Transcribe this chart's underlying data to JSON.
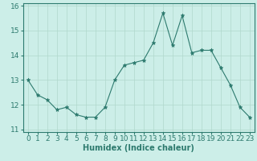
{
  "title": "",
  "xlabel": "Humidex (Indice chaleur)",
  "ylabel": "",
  "x": [
    0,
    1,
    2,
    3,
    4,
    5,
    6,
    7,
    8,
    9,
    10,
    11,
    12,
    13,
    14,
    15,
    16,
    17,
    18,
    19,
    20,
    21,
    22,
    23
  ],
  "y": [
    13.0,
    12.4,
    12.2,
    11.8,
    11.9,
    11.6,
    11.5,
    11.5,
    11.9,
    13.0,
    13.6,
    13.7,
    13.8,
    14.5,
    15.7,
    14.4,
    15.6,
    14.1,
    14.2,
    14.2,
    13.5,
    12.8,
    11.9,
    11.5
  ],
  "line_color": "#2d7a6e",
  "marker": "*",
  "marker_size": 3.5,
  "bg_color": "#cceee8",
  "grid_color": "#b0d8cc",
  "ylim": [
    10.9,
    16.1
  ],
  "yticks": [
    11,
    12,
    13,
    14,
    15,
    16
  ],
  "xlim": [
    -0.5,
    23.5
  ],
  "xticks": [
    0,
    1,
    2,
    3,
    4,
    5,
    6,
    7,
    8,
    9,
    10,
    11,
    12,
    13,
    14,
    15,
    16,
    17,
    18,
    19,
    20,
    21,
    22,
    23
  ],
  "label_fontsize": 7,
  "tick_fontsize": 6.5
}
